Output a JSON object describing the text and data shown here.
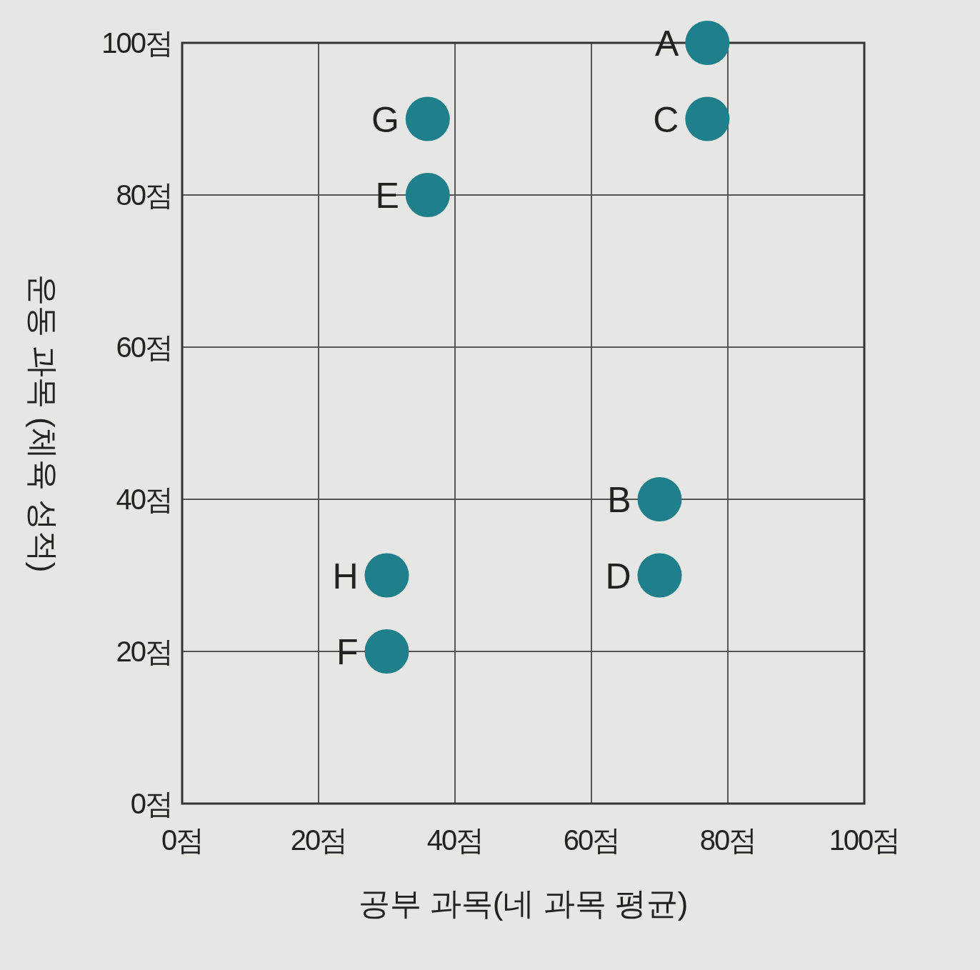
{
  "chart_data": {
    "type": "scatter",
    "xlabel": "공부 과목(네 과목 평균)",
    "ylabel": "운동 과목 (체육 성적)",
    "x": [
      77,
      70,
      77,
      70,
      36,
      30,
      36,
      30
    ],
    "series": [
      {
        "color": "#1f7f8a",
        "values": [
          100,
          40,
          90,
          30,
          80,
          20,
          90,
          30
        ]
      }
    ],
    "xlim": [
      0,
      100
    ],
    "ylim": [
      0,
      100
    ],
    "xticks": [
      {
        "value": 0,
        "label": "0점"
      },
      {
        "value": 20,
        "label": "20점"
      },
      {
        "value": 40,
        "label": "40점"
      },
      {
        "value": 60,
        "label": "60점"
      },
      {
        "value": 80,
        "label": "80점"
      },
      {
        "value": 100,
        "label": "100점"
      }
    ],
    "yticks": [
      {
        "value": 0,
        "label": "0점"
      },
      {
        "value": 20,
        "label": "20점"
      },
      {
        "value": 40,
        "label": "40점"
      },
      {
        "value": 60,
        "label": "60점"
      },
      {
        "value": 80,
        "label": "80점"
      },
      {
        "value": 100,
        "label": "100점"
      }
    ],
    "grid": true,
    "marker": "circle",
    "annotations": [
      {
        "text": "A",
        "x": 77,
        "y": 100
      },
      {
        "text": "B",
        "x": 70,
        "y": 40
      },
      {
        "text": "C",
        "x": 77,
        "y": 90
      },
      {
        "text": "D",
        "x": 70,
        "y": 30
      },
      {
        "text": "E",
        "x": 36,
        "y": 80
      },
      {
        "text": "F",
        "x": 30,
        "y": 20
      },
      {
        "text": "G",
        "x": 36,
        "y": 90
      },
      {
        "text": "H",
        "x": 30,
        "y": 30
      }
    ]
  }
}
